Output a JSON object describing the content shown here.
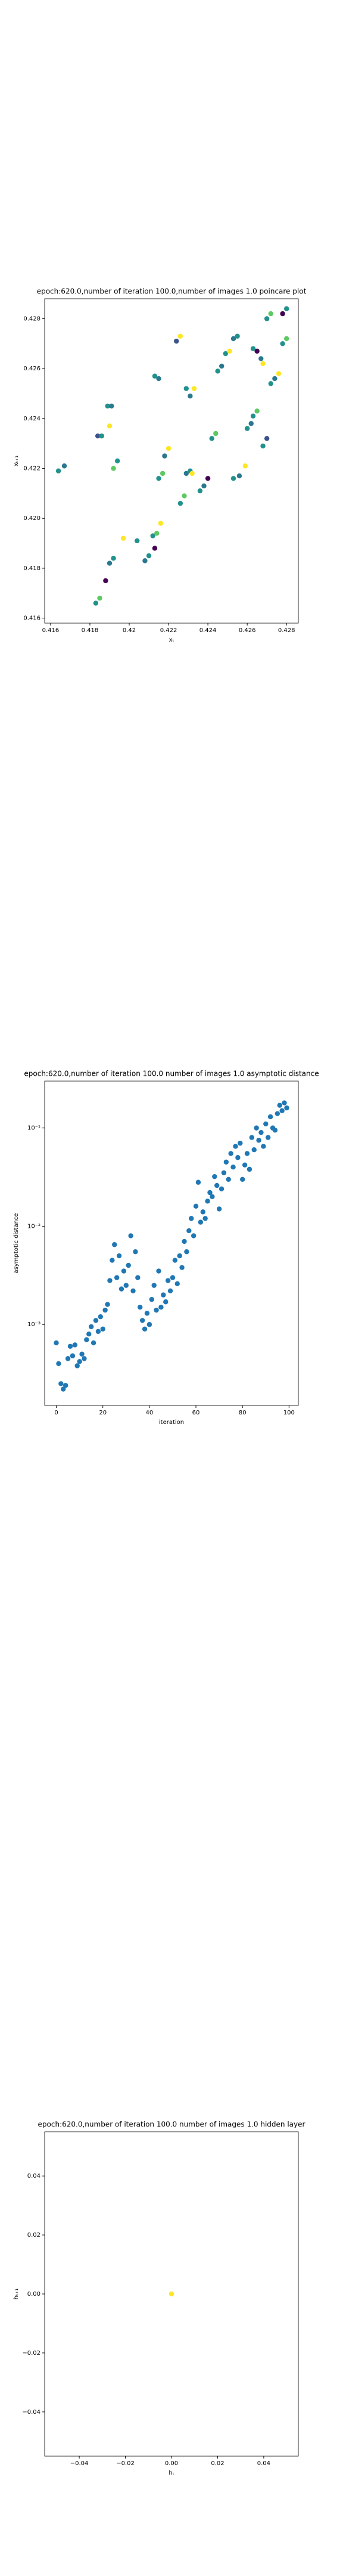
{
  "chart_data": [
    {
      "type": "scatter",
      "title": "epoch:620.0,number of iteration 100.0,number of images 1.0 poincare plot",
      "x_label": "xₜ",
      "y_label": "xₜ₊₁",
      "x": [
        0.4164,
        0.4167,
        0.4184,
        0.4186,
        0.4189,
        0.4191,
        0.419,
        0.4192,
        0.4194,
        0.4192,
        0.419,
        0.4183,
        0.4185,
        0.4188,
        0.4197,
        0.4204,
        0.4208,
        0.421,
        0.4212,
        0.4214,
        0.4216,
        0.4213,
        0.4215,
        0.4217,
        0.4218,
        0.422,
        0.4213,
        0.4215,
        0.4226,
        0.4228,
        0.4229,
        0.4231,
        0.4232,
        0.4224,
        0.4226,
        0.4229,
        0.4231,
        0.4233,
        0.4236,
        0.4238,
        0.424,
        0.4242,
        0.4244,
        0.4245,
        0.4247,
        0.4249,
        0.4251,
        0.4253,
        0.4255,
        0.4253,
        0.4256,
        0.4259,
        0.426,
        0.4262,
        0.4263,
        0.4265,
        0.4263,
        0.4265,
        0.4267,
        0.4268,
        0.427,
        0.4272,
        0.4268,
        0.427,
        0.4272,
        0.4274,
        0.4276,
        0.4278,
        0.428,
        0.4278,
        0.428
      ],
      "y": [
        0.4219,
        0.4221,
        0.4233,
        0.4233,
        0.4245,
        0.4245,
        0.4237,
        0.422,
        0.4223,
        0.4184,
        0.4182,
        0.4166,
        0.4168,
        0.4175,
        0.4192,
        0.4191,
        0.4183,
        0.4185,
        0.4193,
        0.4194,
        0.4198,
        0.4188,
        0.4216,
        0.4218,
        0.4225,
        0.4228,
        0.4257,
        0.4256,
        0.4206,
        0.4209,
        0.4218,
        0.4219,
        0.4218,
        0.4271,
        0.4273,
        0.4252,
        0.4249,
        0.4252,
        0.4211,
        0.4213,
        0.4216,
        0.4232,
        0.4234,
        0.4259,
        0.4261,
        0.4266,
        0.4267,
        0.4272,
        0.4273,
        0.4216,
        0.4217,
        0.4221,
        0.4236,
        0.4238,
        0.4241,
        0.4243,
        0.4268,
        0.4267,
        0.4264,
        0.4262,
        0.428,
        0.4282,
        0.4229,
        0.4232,
        0.4254,
        0.4256,
        0.4258,
        0.427,
        0.4272,
        0.4282,
        0.4284
      ],
      "colors": [
        "#21918c",
        "#2a788e",
        "#3b528b",
        "#21918c",
        "#21918c",
        "#2a788e",
        "#fde725",
        "#5ec962",
        "#21918c",
        "#21918c",
        "#2a788e",
        "#21918c",
        "#5ec962",
        "#440154",
        "#fde725",
        "#21918c",
        "#2a788e",
        "#21918c",
        "#21918c",
        "#5ec962",
        "#fde725",
        "#440154",
        "#21918c",
        "#5ec962",
        "#2a788e",
        "#fde725",
        "#21918c",
        "#2a788e",
        "#21918c",
        "#5ec962",
        "#2a788e",
        "#21918c",
        "#fde725",
        "#3b528b",
        "#fde725",
        "#21918c",
        "#2a788e",
        "#fde725",
        "#21918c",
        "#2a788e",
        "#440154",
        "#21918c",
        "#5ec962",
        "#21918c",
        "#2a788e",
        "#21918c",
        "#fde725",
        "#2a788e",
        "#21918c",
        "#21918c",
        "#2a788e",
        "#fde725",
        "#21918c",
        "#2a788e",
        "#21918c",
        "#5ec962",
        "#21918c",
        "#440154",
        "#2a788e",
        "#fde725",
        "#21918c",
        "#5ec962",
        "#21918c",
        "#3b528b",
        "#21918c",
        "#2a788e",
        "#fde725",
        "#21918c",
        "#5ec962",
        "#440154",
        "#21918c"
      ],
      "xlim": [
        0.4157,
        0.4286
      ],
      "ylim": [
        0.4158,
        0.4288
      ],
      "xticks": [
        0.416,
        0.418,
        0.42,
        0.422,
        0.424,
        0.426,
        0.428
      ],
      "yticks": [
        0.416,
        0.418,
        {
          "value": 0.42,
          "label": "0.420"
        },
        0.422,
        0.424,
        0.426,
        0.428
      ]
    },
    {
      "type": "scatter",
      "title": "epoch:620.0,number of iteration 100.0  number of images 1.0 asymptotic distance",
      "x_label": "iteration",
      "y_label": "asymptotic distance",
      "y_scale": "log",
      "color": "#1f77b4",
      "x": [
        0,
        1,
        2,
        3,
        4,
        5,
        6,
        7,
        8,
        9,
        10,
        11,
        12,
        13,
        14,
        15,
        16,
        17,
        18,
        19,
        20,
        21,
        22,
        23,
        24,
        25,
        26,
        27,
        28,
        29,
        30,
        31,
        32,
        33,
        34,
        35,
        36,
        37,
        38,
        39,
        40,
        41,
        42,
        43,
        44,
        45,
        46,
        47,
        48,
        49,
        50,
        51,
        52,
        53,
        54,
        55,
        56,
        57,
        58,
        59,
        60,
        61,
        62,
        63,
        64,
        65,
        66,
        67,
        68,
        69,
        70,
        71,
        72,
        73,
        74,
        75,
        76,
        77,
        78,
        79,
        80,
        81,
        82,
        83,
        84,
        85,
        86,
        87,
        88,
        89,
        90,
        91,
        92,
        93,
        94,
        95,
        96,
        97,
        98,
        99
      ],
      "y": [
        0.00065,
        0.0004,
        0.00025,
        0.00022,
        0.00024,
        0.00045,
        0.0006,
        0.00048,
        0.00062,
        0.00038,
        0.00042,
        0.0005,
        0.00045,
        0.0007,
        0.0008,
        0.00095,
        0.00065,
        0.0011,
        0.00085,
        0.0012,
        0.0009,
        0.0014,
        0.0016,
        0.0028,
        0.0045,
        0.0065,
        0.003,
        0.005,
        0.0023,
        0.0035,
        0.0025,
        0.004,
        0.008,
        0.0022,
        0.0055,
        0.003,
        0.0015,
        0.0011,
        0.0009,
        0.0013,
        0.001,
        0.0018,
        0.0025,
        0.0014,
        0.0035,
        0.0015,
        0.002,
        0.0017,
        0.0028,
        0.0022,
        0.003,
        0.0045,
        0.0026,
        0.005,
        0.0038,
        0.007,
        0.0055,
        0.009,
        0.012,
        0.008,
        0.016,
        0.028,
        0.011,
        0.014,
        0.012,
        0.018,
        0.022,
        0.02,
        0.032,
        0.026,
        0.015,
        0.024,
        0.035,
        0.045,
        0.03,
        0.055,
        0.04,
        0.065,
        0.05,
        0.07,
        0.03,
        0.042,
        0.055,
        0.038,
        0.08,
        0.06,
        0.1,
        0.075,
        0.09,
        0.065,
        0.11,
        0.08,
        0.13,
        0.1,
        0.095,
        0.14,
        0.17,
        0.15,
        0.18,
        0.16
      ],
      "xlim": [
        -5,
        104
      ],
      "ylim": [
        0.00015,
        0.3
      ],
      "xticks": [
        0,
        20,
        40,
        60,
        80,
        100
      ],
      "yticks": [
        {
          "value": 0.001,
          "label": "10⁻³"
        },
        {
          "value": 0.01,
          "label": "10⁻²"
        },
        {
          "value": 0.1,
          "label": "10⁻¹"
        }
      ]
    },
    {
      "type": "scatter",
      "title": "epoch:620.0,number of iteration 100.0  number of images 1.0 hidden layer",
      "x_label": "hₜ",
      "y_label": "hₜ₊₁",
      "color": "#fde725",
      "x": [
        0
      ],
      "y": [
        0
      ],
      "xlim": [
        -0.055,
        0.055
      ],
      "ylim": [
        -0.055,
        0.055
      ],
      "xticks": [
        {
          "value": -0.04,
          "label": "−0.04"
        },
        {
          "value": -0.02,
          "label": "−0.02"
        },
        {
          "value": 0,
          "label": "0.00"
        },
        0.02,
        0.04
      ],
      "yticks": [
        {
          "value": -0.04,
          "label": "−0.04"
        },
        {
          "value": -0.02,
          "label": "−0.02"
        },
        {
          "value": 0,
          "label": "0.00"
        },
        0.02,
        0.04
      ]
    }
  ]
}
